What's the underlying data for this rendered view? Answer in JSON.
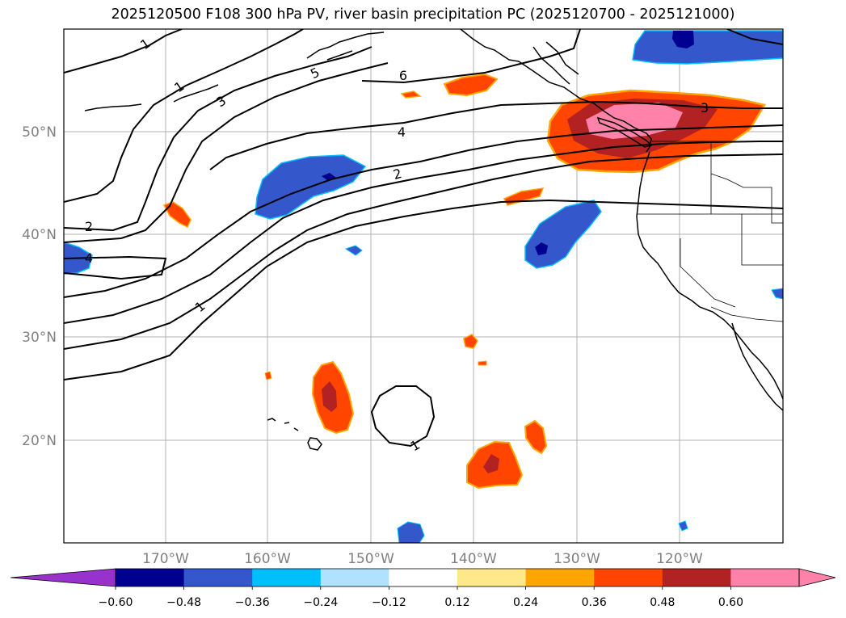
{
  "title": "2025120500 F108 300 hPa PV, river basin precipitation PC (2025120700 - 2025121000)",
  "map": {
    "lon_range": [
      -180,
      -110
    ],
    "lat_range": [
      10,
      60
    ],
    "lon_ticks": [
      "170°W",
      "160°W",
      "150°W",
      "140°W",
      "130°W",
      "120°W"
    ],
    "lat_ticks": [
      "50°N",
      "40°N",
      "30°N",
      "20°N"
    ],
    "grid": true,
    "contour_field": "300 hPa PV",
    "contour_labels": [
      "1",
      "1",
      "3",
      "5",
      "6",
      "4",
      "2",
      "3",
      "2",
      "4",
      "1",
      "1"
    ],
    "fill_field": "river basin precipitation PC"
  },
  "colorbar": {
    "extend": "both",
    "tick_labels": [
      "−0.60",
      "−0.48",
      "−0.36",
      "−0.24",
      "−0.12",
      "0.12",
      "0.24",
      "0.36",
      "0.48",
      "0.60"
    ],
    "colors": {
      "below": "#9932cc",
      "bins": [
        "#000090",
        "#3458cc",
        "#00bfff",
        "#b0e2ff",
        "#ffffff",
        "#ffe88a",
        "#ffa500",
        "#ff4500",
        "#b22222",
        "#ff82ab"
      ],
      "above": "#ff82ab"
    }
  },
  "colors": {
    "neg_strong": "#000090",
    "neg_mid": "#3458cc",
    "neg_light": "#00bfff",
    "pos_light": "#ffe88a",
    "pos_mid": "#ffa500",
    "pos_strong": "#ff4500",
    "pos_darker": "#b22222",
    "pos_max": "#ff82ab",
    "gridline": "#b0b0b0",
    "tick_text": "#808080"
  }
}
